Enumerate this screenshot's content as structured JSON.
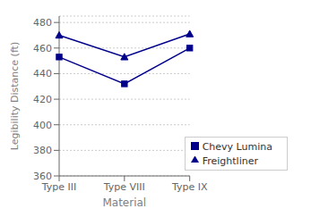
{
  "chart_data": {
    "type": "line",
    "categories": [
      "Type III",
      "Type VIII",
      "Type IX"
    ],
    "series": [
      {
        "name": "Freightliner",
        "color": "#00008B",
        "marker": "triangle",
        "values": [
          470,
          453,
          471
        ]
      },
      {
        "name": "Chevy Lumina",
        "color": "#00008B",
        "marker": "square",
        "values": [
          453,
          432,
          460
        ]
      }
    ],
    "xlabel": "Material",
    "ylabel": "Legibility Distance (ft)",
    "ylim": [
      360,
      485
    ],
    "yticks": [
      360,
      380,
      400,
      420,
      440,
      460,
      480
    ],
    "grid": "y",
    "legend": "lower right"
  }
}
